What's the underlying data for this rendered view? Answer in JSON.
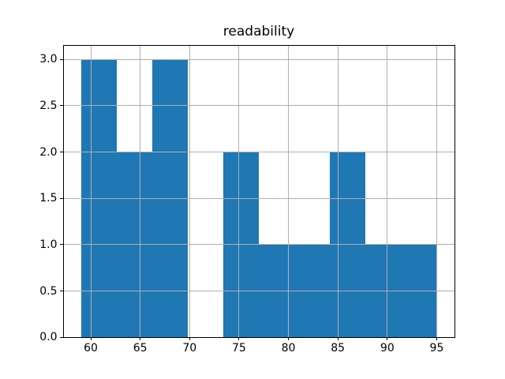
{
  "chart_data": {
    "type": "histogram",
    "title": "readability",
    "bin_edges": [
      59.0,
      62.6,
      66.2,
      69.8,
      73.4,
      77.0,
      80.6,
      84.2,
      87.8,
      91.4,
      95.0
    ],
    "counts": [
      3,
      2,
      3,
      0,
      2,
      1,
      1,
      2,
      1,
      1
    ],
    "x_ticks": [
      60,
      65,
      70,
      75,
      80,
      85,
      90,
      95
    ],
    "x_tick_labels": [
      "60",
      "65",
      "70",
      "75",
      "80",
      "85",
      "90",
      "95"
    ],
    "y_ticks": [
      0,
      0.5,
      1,
      1.5,
      2,
      2.5,
      3
    ],
    "y_tick_labels": [
      "0.0",
      "0.5",
      "1.0",
      "1.5",
      "2.0",
      "2.5",
      "3.0"
    ],
    "xlim": [
      57.2,
      96.8
    ],
    "ylim": [
      0,
      3.15
    ],
    "grid": true,
    "grid_above_bars": true,
    "colors": {
      "bar": "#1f77b4",
      "grid": "#b0b0b0",
      "spine": "#000000",
      "tick": "#000000",
      "text": "#000000",
      "background": "#ffffff"
    }
  }
}
